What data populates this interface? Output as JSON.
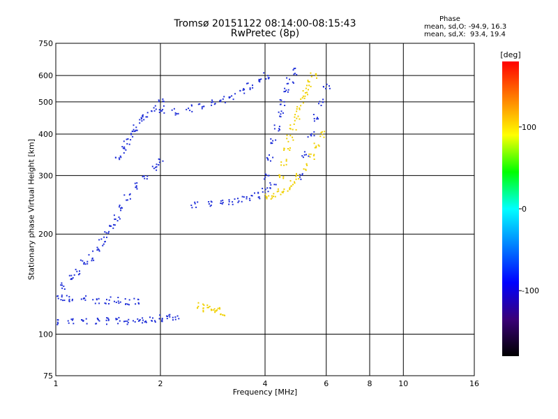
{
  "header": {
    "title": "Tromsø 20151122 08:14:00-08:15:43",
    "subtitle": "RwPretec (8p)"
  },
  "phase_stats": {
    "heading": "Phase",
    "o_line": "mean, sd,O: -94.9, 16.3",
    "x_line": "mean, sd,X:  93.4, 19.4"
  },
  "chart_data": {
    "type": "scatter",
    "xlabel": "Frequency [MHz]",
    "ylabel": "Stationary phase Virtual Height [km]",
    "xscale": "log",
    "yscale": "log",
    "xlim": [
      1,
      16
    ],
    "ylim": [
      75,
      750
    ],
    "x_ticks": [
      1,
      2,
      4,
      6,
      8,
      10,
      16
    ],
    "y_ticks": [
      75,
      100,
      200,
      300,
      400,
      500,
      600,
      750
    ],
    "grid": true,
    "colorbar": {
      "label": "[deg]",
      "range": [
        -180,
        180
      ],
      "ticks": [
        100,
        0,
        -100
      ],
      "colors": [
        "#000000",
        "#3a0078",
        "#0000ff",
        "#0080ff",
        "#00ffff",
        "#00ff00",
        "#ffff00",
        "#ff8000",
        "#ff0000"
      ]
    },
    "series": [
      {
        "mode": "O",
        "color": "#2030d8",
        "traces": [
          {
            "x": [
              1.0,
              1.1,
              1.2,
              1.3,
              1.4,
              1.5,
              1.6,
              1.7,
              1.8,
              1.9,
              2.0,
              2.1,
              2.2
            ],
            "y": [
              110,
              110,
              110,
              110,
              110,
              110,
              110,
              111,
              111,
              112,
              112,
              113,
              113
            ]
          },
          {
            "x": [
              1.0,
              1.05,
              1.1,
              1.2,
              1.3,
              1.4,
              1.5,
              1.6,
              1.7
            ],
            "y": [
              130,
              130,
              128,
              128,
              127,
              127,
              127,
              126,
              126
            ]
          },
          {
            "x": [
              1.05,
              1.1,
              1.15,
              1.2,
              1.25,
              1.3,
              1.35
            ],
            "y": [
              140,
              148,
              155,
              165,
              170,
              180,
              190
            ]
          },
          {
            "x": [
              1.4,
              1.45,
              1.5,
              1.55,
              1.6,
              1.7,
              1.8,
              1.9,
              2.0
            ],
            "y": [
              200,
              210,
              225,
              240,
              260,
              280,
              300,
              320,
              330
            ]
          },
          {
            "x": [
              1.5,
              1.55,
              1.6,
              1.65,
              1.7,
              1.75,
              1.8,
              1.9,
              2.0
            ],
            "y": [
              340,
              360,
              380,
              400,
              420,
              440,
              460,
              480,
              500
            ]
          },
          {
            "x": [
              2.0,
              2.2,
              2.4,
              2.6,
              2.8,
              3.0,
              3.2,
              3.4,
              3.6,
              3.8,
              4.0
            ],
            "y": [
              470,
              470,
              480,
              490,
              500,
              510,
              520,
              540,
              560,
              580,
              600
            ]
          },
          {
            "x": [
              2.5,
              2.8,
              3.0,
              3.2,
              3.4,
              3.6,
              3.8,
              4.0,
              4.2
            ],
            "y": [
              245,
              248,
              250,
              252,
              255,
              258,
              262,
              270,
              280
            ]
          },
          {
            "x": [
              4.0,
              4.1,
              4.2,
              4.3,
              4.4,
              4.5,
              4.6,
              4.7,
              4.8
            ],
            "y": [
              300,
              340,
              380,
              420,
              460,
              500,
              540,
              580,
              620
            ]
          },
          {
            "x": [
              5.0,
              5.2,
              5.4,
              5.6,
              5.8,
              6.0
            ],
            "y": [
              300,
              350,
              400,
              450,
              500,
              560
            ]
          }
        ]
      },
      {
        "mode": "X",
        "color": "#f0d000",
        "traces": [
          {
            "x": [
              4.0,
              4.2,
              4.4,
              4.6,
              4.8,
              5.0,
              5.2,
              5.4,
              5.6,
              5.8
            ],
            "y": [
              260,
              262,
              268,
              275,
              285,
              300,
              320,
              345,
              370,
              400
            ]
          },
          {
            "x": [
              4.4,
              4.5,
              4.6,
              4.7,
              4.8,
              4.9,
              5.0,
              5.1,
              5.2,
              5.3,
              5.5
            ],
            "y": [
              300,
              330,
              360,
              390,
              420,
              450,
              480,
              510,
              540,
              570,
              600
            ]
          },
          {
            "x": [
              2.6,
              2.7,
              2.8,
              2.9,
              3.0
            ],
            "y": [
              122,
              120,
              119,
              118,
              117
            ]
          }
        ]
      }
    ]
  }
}
